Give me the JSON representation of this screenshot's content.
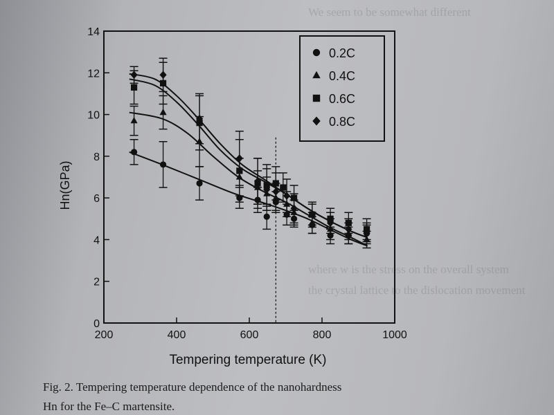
{
  "chart_data": {
    "type": "line",
    "xlabel": "Tempering temperature (K)",
    "ylabel": "Hn(GPa)",
    "xlim": [
      200,
      1000
    ],
    "ylim": [
      0,
      14
    ],
    "xticks": [
      200,
      400,
      600,
      800,
      1000
    ],
    "yticks": [
      0,
      2,
      4,
      6,
      8,
      10,
      12,
      14
    ],
    "grid": false,
    "legend_position": "top-right",
    "reference_line_x": 673,
    "series": [
      {
        "name": "0.2C",
        "marker": "circle",
        "x": [
          283,
          363,
          463,
          573,
          623,
          648,
          673,
          703,
          723,
          773,
          823,
          873,
          923
        ],
        "y": [
          8.2,
          7.6,
          6.7,
          6.0,
          5.9,
          5.1,
          5.8,
          5.2,
          5.0,
          4.7,
          4.2,
          4.2,
          4.3
        ],
        "err": [
          0.6,
          1.1,
          0.8,
          0.5,
          0.6,
          0.6,
          0.5,
          0.5,
          0.4,
          0.4,
          0.4,
          0.4,
          0.4
        ],
        "fit": [
          [
            270,
            8.2
          ],
          [
            360,
            7.6
          ],
          [
            460,
            6.9
          ],
          [
            560,
            6.2
          ],
          [
            650,
            5.7
          ],
          [
            700,
            5.4
          ],
          [
            760,
            5.0
          ],
          [
            820,
            4.5
          ],
          [
            880,
            4.0
          ],
          [
            925,
            3.7
          ]
        ]
      },
      {
        "name": "0.4C",
        "marker": "triangle",
        "x": [
          283,
          363,
          463,
          573,
          623,
          648,
          673,
          703,
          723,
          773,
          823,
          873,
          923
        ],
        "y": [
          9.7,
          10.1,
          8.7,
          7.0,
          6.5,
          6.2,
          6.0,
          5.7,
          5.3,
          4.8,
          4.5,
          4.3,
          4.0
        ],
        "err": [
          0.7,
          0.8,
          1.2,
          0.9,
          0.8,
          0.8,
          0.7,
          0.6,
          0.6,
          0.5,
          0.5,
          0.5,
          0.4
        ],
        "fit": [
          [
            270,
            10.1
          ],
          [
            360,
            9.8
          ],
          [
            430,
            9.1
          ],
          [
            500,
            8.0
          ],
          [
            570,
            7.0
          ],
          [
            640,
            6.3
          ],
          [
            700,
            5.8
          ],
          [
            760,
            5.2
          ],
          [
            820,
            4.6
          ],
          [
            880,
            4.1
          ],
          [
            925,
            3.7
          ]
        ]
      },
      {
        "name": "0.6C",
        "marker": "square",
        "x": [
          283,
          363,
          463,
          573,
          623,
          648,
          673,
          693,
          723,
          773,
          823,
          873,
          923
        ],
        "y": [
          11.3,
          11.5,
          9.6,
          7.3,
          6.7,
          6.6,
          6.7,
          6.5,
          6.0,
          5.2,
          5.0,
          4.8,
          4.5
        ],
        "err": [
          0.8,
          1.0,
          1.3,
          1.5,
          1.2,
          1.0,
          0.8,
          0.7,
          0.6,
          0.5,
          0.5,
          0.5,
          0.5
        ],
        "fit": [
          [
            270,
            11.7
          ],
          [
            340,
            11.4
          ],
          [
            400,
            10.6
          ],
          [
            460,
            9.5
          ],
          [
            520,
            8.3
          ],
          [
            580,
            7.4
          ],
          [
            640,
            6.8
          ],
          [
            700,
            6.2
          ],
          [
            760,
            5.5
          ],
          [
            820,
            4.9
          ],
          [
            880,
            4.4
          ],
          [
            925,
            4.1
          ]
        ]
      },
      {
        "name": "0.8C",
        "marker": "diamond",
        "x": [
          283,
          363,
          463,
          573,
          623,
          648,
          673,
          703,
          723,
          773,
          823,
          873,
          923
        ],
        "y": [
          11.9,
          11.9,
          9.8,
          7.9,
          6.8,
          6.4,
          6.3,
          6.1,
          5.5,
          5.2,
          4.8,
          4.5,
          4.3
        ],
        "err": [
          0.4,
          0.8,
          1.2,
          1.3,
          1.1,
          1.0,
          0.9,
          0.8,
          0.7,
          0.6,
          0.5,
          0.5,
          0.5
        ],
        "fit": [
          [
            270,
            11.95
          ],
          [
            340,
            11.7
          ],
          [
            400,
            10.9
          ],
          [
            460,
            9.8
          ],
          [
            520,
            8.6
          ],
          [
            580,
            7.6
          ],
          [
            640,
            6.9
          ],
          [
            700,
            6.2
          ],
          [
            760,
            5.5
          ],
          [
            820,
            4.9
          ],
          [
            880,
            4.4
          ],
          [
            925,
            4.1
          ]
        ]
      }
    ]
  },
  "caption": {
    "line1": "Fig. 2. Tempering temperature dependence of the nanohardness",
    "line2": "Hn for the Fe–C martensite."
  },
  "colors": {
    "ink": "#111111",
    "paper": "#bcbdc1"
  }
}
